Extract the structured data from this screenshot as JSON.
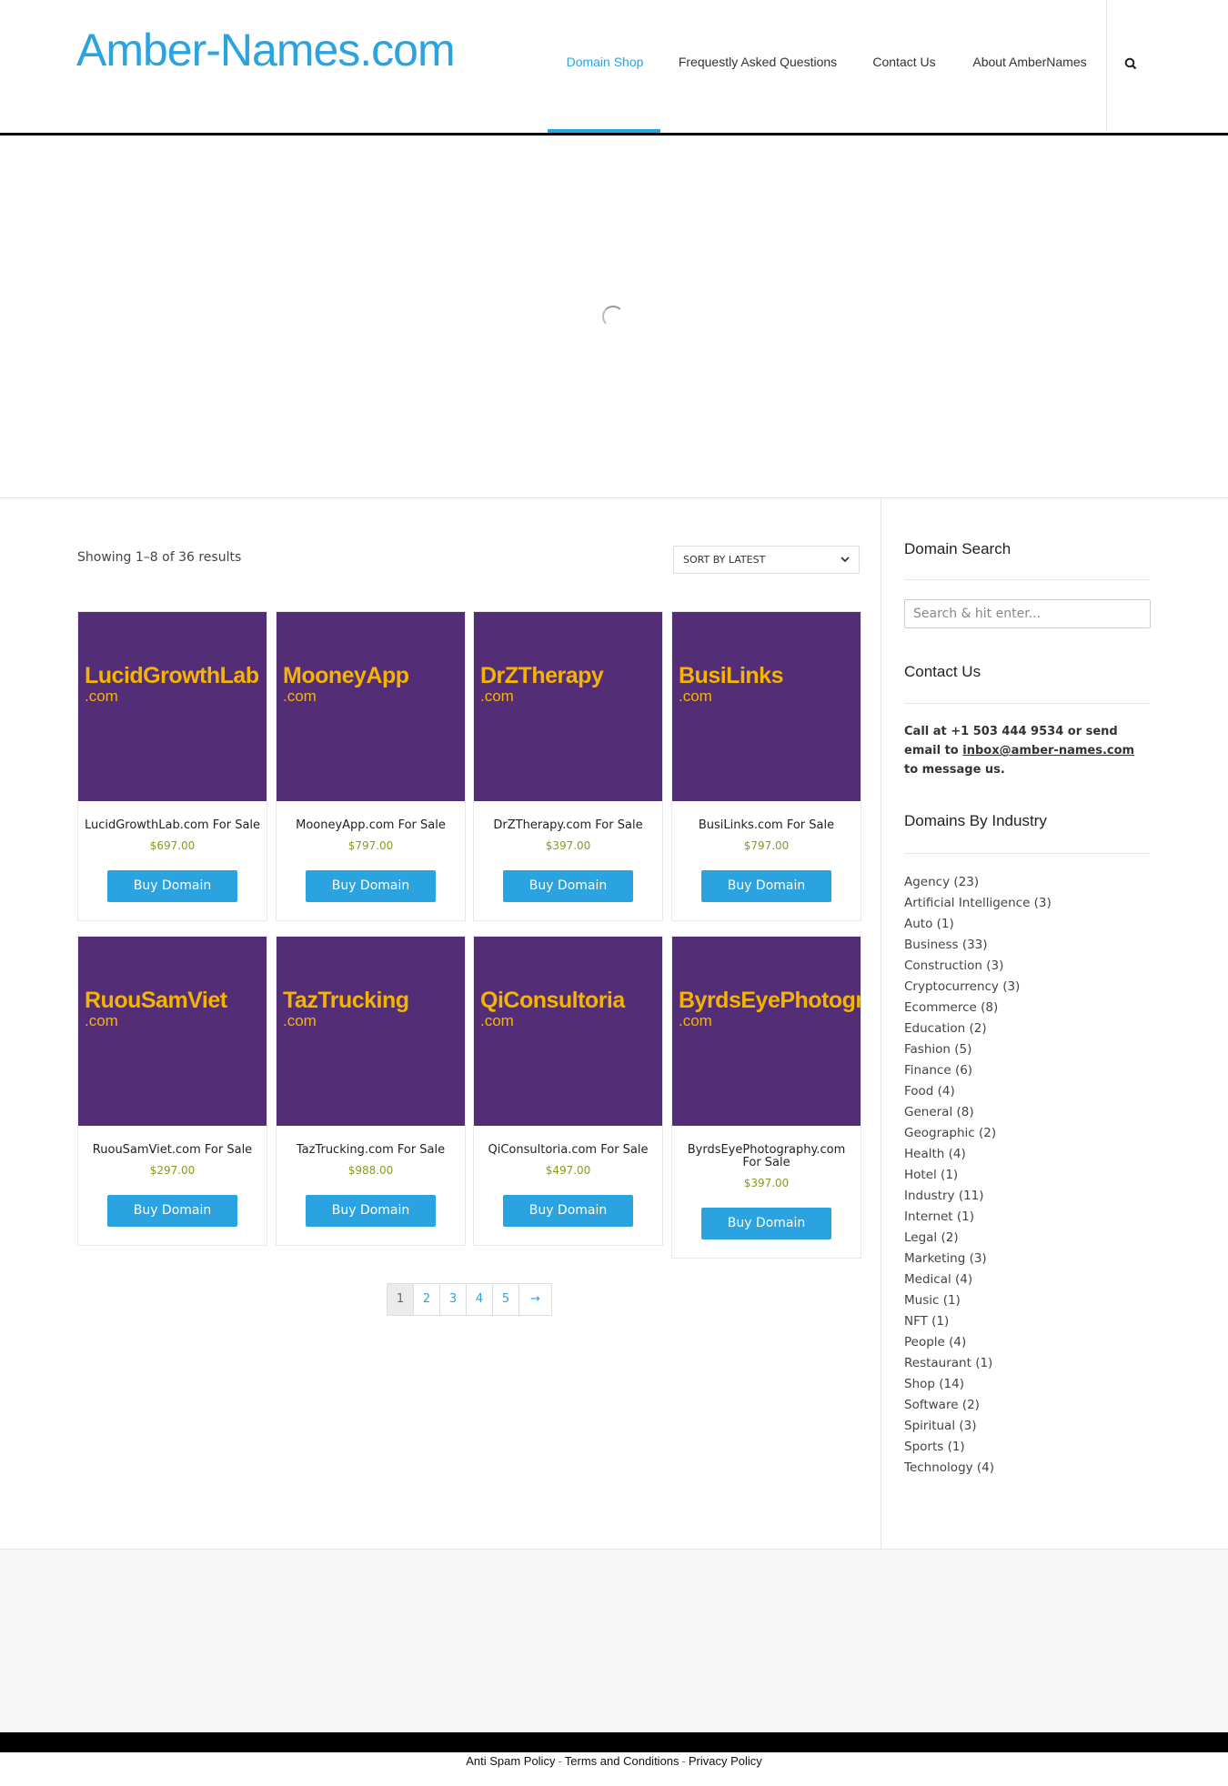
{
  "header": {
    "logo": "Amber-Names.com",
    "nav": [
      {
        "label": "Domain Shop",
        "active": true
      },
      {
        "label": "Frequestly Asked Questions",
        "active": false
      },
      {
        "label": "Contact Us",
        "active": false
      },
      {
        "label": "About AmberNames",
        "active": false
      }
    ],
    "search_icon": "search-icon"
  },
  "shop": {
    "result_count": "Showing 1–8 of 36 results",
    "sort_selected": "SORT BY LATEST",
    "products": [
      {
        "name": "LucidGrowthLab",
        "tld": ".com",
        "title": "LucidGrowthLab.com For Sale",
        "price": "$697.00",
        "button": "Buy Domain"
      },
      {
        "name": "MooneyApp",
        "tld": ".com",
        "title": "MooneyApp.com For Sale",
        "price": "$797.00",
        "button": "Buy Domain"
      },
      {
        "name": "DrZTherapy",
        "tld": ".com",
        "title": "DrZTherapy.com For Sale",
        "price": "$397.00",
        "button": "Buy Domain"
      },
      {
        "name": "BusiLinks",
        "tld": ".com",
        "title": "BusiLinks.com For Sale",
        "price": "$797.00",
        "button": "Buy Domain"
      },
      {
        "name": "RuouSamViet",
        "tld": ".com",
        "title": "RuouSamViet.com For Sale",
        "price": "$297.00",
        "button": "Buy Domain"
      },
      {
        "name": "TazTrucking",
        "tld": ".com",
        "title": "TazTrucking.com For Sale",
        "price": "$988.00",
        "button": "Buy Domain"
      },
      {
        "name": "QiConsultoria",
        "tld": ".com",
        "title": "QiConsultoria.com For Sale",
        "price": "$497.00",
        "button": "Buy Domain"
      },
      {
        "name": "ByrdsEyePhotography",
        "tld": ".com",
        "title": "ByrdsEyePhotography.com For Sale",
        "price": "$397.00",
        "button": "Buy Domain"
      }
    ],
    "pagination": {
      "pages": [
        "1",
        "2",
        "3",
        "4",
        "5"
      ],
      "current": "1",
      "next": "→"
    }
  },
  "sidebar": {
    "search_title": "Domain Search",
    "search_placeholder": "Search & hit enter...",
    "contact_title": "Contact Us",
    "contact_pre": "Call at +1 503 444 9534 or send email to ",
    "contact_email": "inbox@amber-names.com",
    "contact_post": " to message us.",
    "industry_title": "Domains By Industry",
    "industries": [
      "Agency (23)",
      "Artificial Intelligence (3)",
      "Auto (1)",
      "Business (33)",
      "Construction (3)",
      "Cryptocurrency (3)",
      "Ecommerce (8)",
      "Education (2)",
      "Fashion (5)",
      "Finance (6)",
      "Food (4)",
      "General (8)",
      "Geographic (2)",
      "Health (4)",
      "Hotel (1)",
      "Industry (11)",
      "Internet (1)",
      "Legal (2)",
      "Marketing (3)",
      "Medical (4)",
      "Music (1)",
      "NFT (1)",
      "People (4)",
      "Restaurant (1)",
      "Shop (14)",
      "Software (2)",
      "Spiritual (3)",
      "Sports (1)",
      "Technology (4)"
    ]
  },
  "footer": {
    "links": [
      "Anti Spam Policy",
      "Terms and Conditions",
      "Privacy Policy"
    ],
    "separator": "-"
  },
  "colors": {
    "accent": "#2aa3e0",
    "tile": "#532d75",
    "tile_text": "#f5b400",
    "price": "#8a9a1e"
  }
}
